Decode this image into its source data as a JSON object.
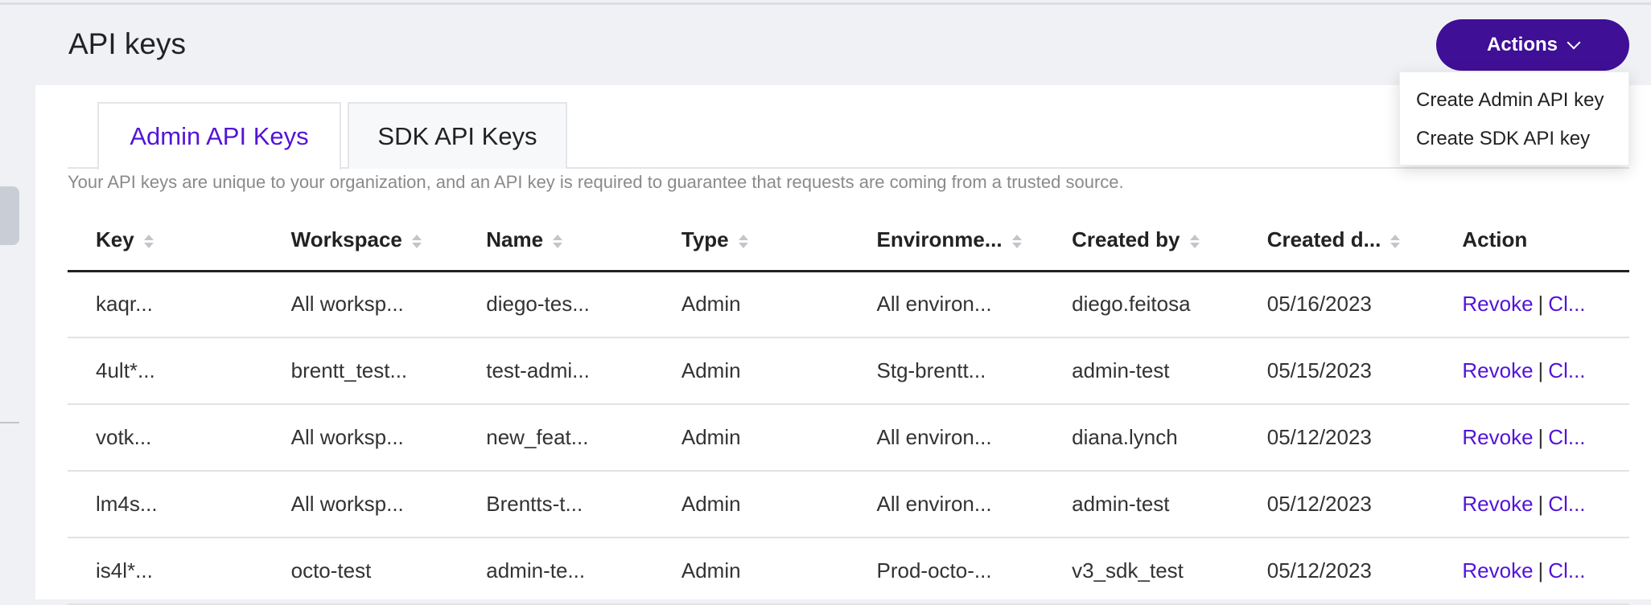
{
  "header": {
    "title": "API keys",
    "actions_label": "Actions"
  },
  "actions_menu": {
    "items": [
      "Create Admin API key",
      "Create SDK API key"
    ]
  },
  "tabs": [
    {
      "label": "Admin API Keys",
      "active": true
    },
    {
      "label": "SDK API Keys",
      "active": false
    }
  ],
  "description": "Your API keys are unique to your organization, and an API key is required to guarantee that requests are coming from a trusted source.",
  "table": {
    "columns": [
      "Key",
      "Workspace",
      "Name",
      "Type",
      "Environme...",
      "Created by",
      "Created d...",
      "Action"
    ],
    "rows": [
      [
        "kaqr...",
        "All worksp...",
        "diego-tes...",
        "Admin",
        "All environ...",
        "diego.feitosa",
        "05/16/2023"
      ],
      [
        "4ult*...",
        "brentt_test...",
        "test-admi...",
        "Admin",
        "Stg-brentt...",
        "admin-test",
        "05/15/2023"
      ],
      [
        "votk...",
        "All worksp...",
        "new_feat...",
        "Admin",
        "All environ...",
        "diana.lynch",
        "05/12/2023"
      ],
      [
        "lm4s...",
        "All worksp...",
        "Brentts-t...",
        "Admin",
        "All environ...",
        "admin-test",
        "05/12/2023"
      ],
      [
        "is4l*...",
        "octo-test",
        "admin-te...",
        "Admin",
        "Prod-octo-...",
        "v3_sdk_test",
        "05/12/2023"
      ]
    ],
    "action_revoke": "Revoke",
    "action_separator": "|",
    "action_clone": "Cl..."
  },
  "colors": {
    "primary": "#3f0f96",
    "link": "#5314d8"
  }
}
